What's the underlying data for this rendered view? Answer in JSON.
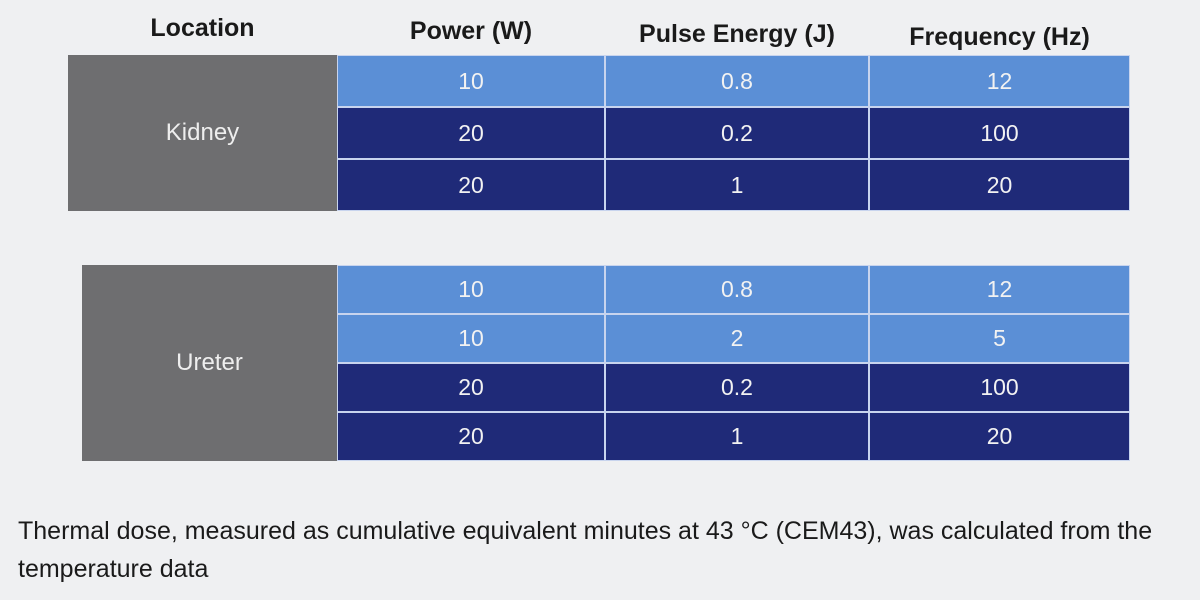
{
  "header": {
    "columns": [
      "Location",
      "Power (W)",
      "Pulse Energy (J)",
      "Frequency (Hz)"
    ]
  },
  "tables": [
    {
      "location": "Kidney",
      "rows": [
        {
          "cells": [
            "10",
            "0.8",
            "12"
          ],
          "color": "#5b8fd6"
        },
        {
          "cells": [
            "20",
            "0.2",
            "100"
          ],
          "color": "#1f2a78"
        },
        {
          "cells": [
            "20",
            "1",
            "20"
          ],
          "color": "#1f2a78"
        }
      ]
    },
    {
      "location": "Ureter",
      "rows": [
        {
          "cells": [
            "10",
            "0.8",
            "12"
          ],
          "color": "#5b8fd6"
        },
        {
          "cells": [
            "10",
            "2",
            "5"
          ],
          "color": "#5b8fd6"
        },
        {
          "cells": [
            "20",
            "0.2",
            "100"
          ],
          "color": "#1f2a78"
        },
        {
          "cells": [
            "20",
            "1",
            "20"
          ],
          "color": "#1f2a78"
        }
      ]
    }
  ],
  "footnote": "Thermal dose, measured as cumulative equivalent minutes at 43 °C (CEM43), was calculated from the temperature data"
}
